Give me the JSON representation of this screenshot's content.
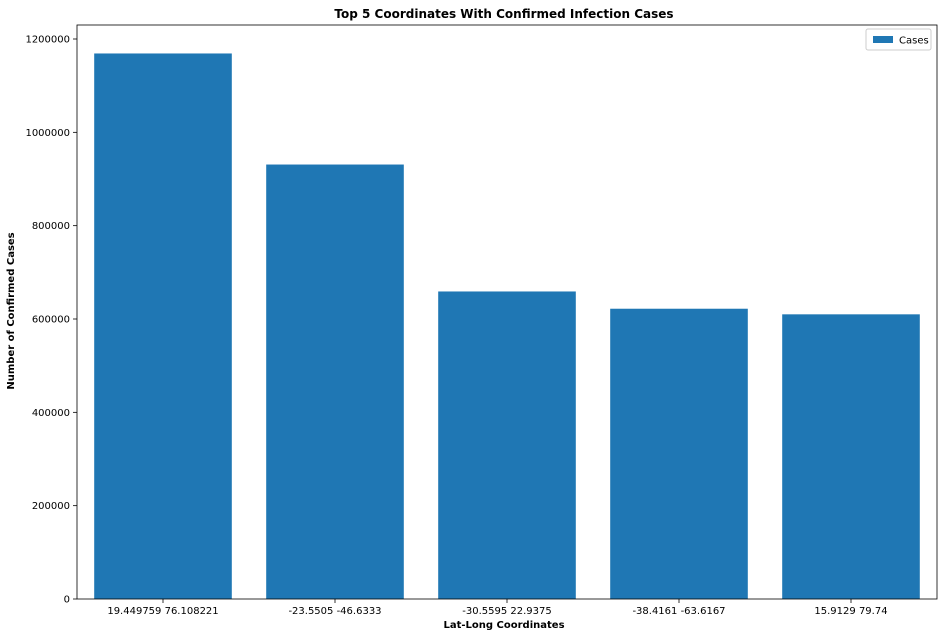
{
  "chart_data": {
    "type": "bar",
    "title": "Top 5 Coordinates With Confirmed Infection Cases",
    "xlabel": "Lat-Long Coordinates",
    "ylabel": "Number of Confirmed Cases",
    "categories": [
      "19.449759 76.108221",
      "-23.5505 -46.6333",
      "-30.5595 22.9375",
      "-38.4161 -63.6167",
      "15.9129 79.74"
    ],
    "series": [
      {
        "name": "Cases",
        "values": [
          1169000,
          931000,
          659000,
          622000,
          610000
        ],
        "color": "#1f77b4"
      }
    ],
    "ylim": [
      0,
      1230000
    ],
    "yticks": [
      0,
      200000,
      400000,
      600000,
      800000,
      1000000,
      1200000
    ],
    "ytick_labels": [
      "0",
      "200000",
      "400000",
      "600000",
      "800000",
      "1000000",
      "1200000"
    ],
    "legend": {
      "placement": "top-right",
      "entries": [
        "Cases"
      ]
    },
    "grid": false
  }
}
